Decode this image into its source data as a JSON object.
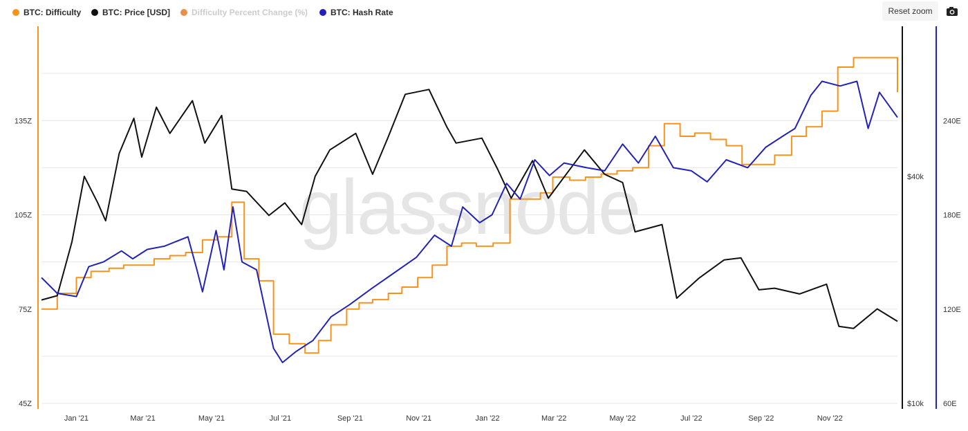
{
  "toolbar": {
    "reset_zoom_label": "Reset zoom",
    "camera_icon": "camera-icon"
  },
  "watermark": "glassnode",
  "legend": [
    {
      "label": "BTC: Difficulty",
      "color": "#f7931a",
      "visible": true
    },
    {
      "label": "BTC: Price [USD]",
      "color": "#111111",
      "visible": true
    },
    {
      "label": "Difficulty Percent Change (%)",
      "color": "#e8904a",
      "visible": false
    },
    {
      "label": "BTC: Hash Rate",
      "color": "#2222bb",
      "visible": true
    }
  ],
  "chart_data": {
    "type": "line",
    "x_range": [
      "2020-12-01",
      "2022-12-31"
    ],
    "x_ticks": [
      "Jan '21",
      "Mar '21",
      "May '21",
      "Jul '21",
      "Sep '21",
      "Nov '21",
      "Jan '22",
      "Mar '22",
      "May '22",
      "Jul '22",
      "Sep '22",
      "Nov '22"
    ],
    "axes": {
      "difficulty": {
        "side": "left",
        "ticks": [
          "45Z",
          "75Z",
          "105Z",
          "135Z"
        ],
        "ylim": [
          45,
          165
        ],
        "color": "#f7931a"
      },
      "price": {
        "side": "right",
        "scale": "log",
        "ticks": [
          "$10k",
          "$40k"
        ],
        "ylim": [
          10000,
          100000
        ],
        "color": "#111111"
      },
      "hash_rate": {
        "side": "right",
        "ticks": [
          "60E",
          "120E",
          "180E",
          "240E"
        ],
        "ylim": [
          60,
          300
        ],
        "color": "#2222bb"
      }
    },
    "grid": true,
    "legend_position": "top-left",
    "series": [
      {
        "name": "BTC: Difficulty",
        "axis": "difficulty",
        "color": "#f7931a",
        "step": true,
        "points": [
          [
            "2020-12-01",
            75
          ],
          [
            "2020-12-15",
            80
          ],
          [
            "2021-01-01",
            85
          ],
          [
            "2021-01-14",
            87
          ],
          [
            "2021-01-30",
            88
          ],
          [
            "2021-02-12",
            89
          ],
          [
            "2021-02-26",
            89
          ],
          [
            "2021-03-11",
            91
          ],
          [
            "2021-03-25",
            92
          ],
          [
            "2021-04-08",
            93
          ],
          [
            "2021-04-23",
            97
          ],
          [
            "2021-05-06",
            98
          ],
          [
            "2021-05-19",
            109
          ],
          [
            "2021-05-30",
            91
          ],
          [
            "2021-06-12",
            84
          ],
          [
            "2021-06-25",
            67
          ],
          [
            "2021-07-09",
            64
          ],
          [
            "2021-07-23",
            61
          ],
          [
            "2021-08-04",
            65
          ],
          [
            "2021-08-15",
            70
          ],
          [
            "2021-08-29",
            75
          ],
          [
            "2021-09-09",
            77
          ],
          [
            "2021-09-21",
            78
          ],
          [
            "2021-10-05",
            80
          ],
          [
            "2021-10-17",
            82
          ],
          [
            "2021-10-31",
            85
          ],
          [
            "2021-11-13",
            89
          ],
          [
            "2021-11-26",
            95
          ],
          [
            "2021-12-09",
            96
          ],
          [
            "2021-12-22",
            95
          ],
          [
            "2022-01-06",
            96
          ],
          [
            "2022-01-21",
            110
          ],
          [
            "2022-02-03",
            110
          ],
          [
            "2022-02-17",
            112
          ],
          [
            "2022-02-28",
            117
          ],
          [
            "2022-03-15",
            116
          ],
          [
            "2022-03-29",
            117
          ],
          [
            "2022-04-12",
            118
          ],
          [
            "2022-04-26",
            119
          ],
          [
            "2022-05-10",
            120
          ],
          [
            "2022-05-24",
            127
          ],
          [
            "2022-06-07",
            134
          ],
          [
            "2022-06-21",
            130
          ],
          [
            "2022-07-04",
            131
          ],
          [
            "2022-07-18",
            129
          ],
          [
            "2022-08-01",
            127
          ],
          [
            "2022-08-15",
            121
          ],
          [
            "2022-08-29",
            121
          ],
          [
            "2022-09-13",
            124
          ],
          [
            "2022-09-28",
            130
          ],
          [
            "2022-10-11",
            133
          ],
          [
            "2022-10-25",
            138
          ],
          [
            "2022-11-08",
            152
          ],
          [
            "2022-11-22",
            155
          ],
          [
            "2022-12-06",
            155
          ],
          [
            "2022-12-20",
            155
          ],
          [
            "2022-12-31",
            144
          ]
        ]
      },
      {
        "name": "BTC: Price [USD]",
        "axis": "price",
        "color": "#111111",
        "points": [
          [
            "2020-12-01",
            18800
          ],
          [
            "2020-12-15",
            19300
          ],
          [
            "2020-12-28",
            26800
          ],
          [
            "2021-01-08",
            40000
          ],
          [
            "2021-01-20",
            34000
          ],
          [
            "2021-01-27",
            30500
          ],
          [
            "2021-02-08",
            46000
          ],
          [
            "2021-02-21",
            57000
          ],
          [
            "2021-02-28",
            45000
          ],
          [
            "2021-03-13",
            61000
          ],
          [
            "2021-03-25",
            52000
          ],
          [
            "2021-04-14",
            63500
          ],
          [
            "2021-04-25",
            49000
          ],
          [
            "2021-05-10",
            58000
          ],
          [
            "2021-05-19",
            37000
          ],
          [
            "2021-06-01",
            36500
          ],
          [
            "2021-06-21",
            31500
          ],
          [
            "2021-07-05",
            34000
          ],
          [
            "2021-07-20",
            29800
          ],
          [
            "2021-08-01",
            40000
          ],
          [
            "2021-08-14",
            47000
          ],
          [
            "2021-09-06",
            52000
          ],
          [
            "2021-09-21",
            40500
          ],
          [
            "2021-10-05",
            51000
          ],
          [
            "2021-10-20",
            66000
          ],
          [
            "2021-11-10",
            68000
          ],
          [
            "2021-11-26",
            54000
          ],
          [
            "2021-12-04",
            49000
          ],
          [
            "2021-12-27",
            50500
          ],
          [
            "2022-01-10",
            41800
          ],
          [
            "2022-01-22",
            35000
          ],
          [
            "2022-02-10",
            44000
          ],
          [
            "2022-02-24",
            35000
          ],
          [
            "2022-03-28",
            47000
          ],
          [
            "2022-04-15",
            40500
          ],
          [
            "2022-05-01",
            38500
          ],
          [
            "2022-05-12",
            28500
          ],
          [
            "2022-06-05",
            29800
          ],
          [
            "2022-06-18",
            19000
          ],
          [
            "2022-07-08",
            21500
          ],
          [
            "2022-07-30",
            24000
          ],
          [
            "2022-08-14",
            24300
          ],
          [
            "2022-08-30",
            20000
          ],
          [
            "2022-09-13",
            20200
          ],
          [
            "2022-10-05",
            19500
          ],
          [
            "2022-10-29",
            20700
          ],
          [
            "2022-11-09",
            16000
          ],
          [
            "2022-11-22",
            15800
          ],
          [
            "2022-12-13",
            17800
          ],
          [
            "2022-12-31",
            16500
          ]
        ]
      },
      {
        "name": "BTC: Hash Rate",
        "axis": "hash_rate",
        "color": "#2222bb",
        "points": [
          [
            "2020-12-01",
            140
          ],
          [
            "2020-12-15",
            130
          ],
          [
            "2021-01-01",
            128
          ],
          [
            "2021-01-12",
            147
          ],
          [
            "2021-01-25",
            150
          ],
          [
            "2021-02-10",
            157
          ],
          [
            "2021-02-20",
            152
          ],
          [
            "2021-03-05",
            158
          ],
          [
            "2021-03-20",
            160
          ],
          [
            "2021-04-10",
            166
          ],
          [
            "2021-04-18",
            145
          ],
          [
            "2021-04-23",
            131
          ],
          [
            "2021-05-05",
            170
          ],
          [
            "2021-05-12",
            145
          ],
          [
            "2021-05-20",
            185
          ],
          [
            "2021-05-28",
            150
          ],
          [
            "2021-06-10",
            145
          ],
          [
            "2021-06-25",
            95
          ],
          [
            "2021-07-03",
            86
          ],
          [
            "2021-07-15",
            93
          ],
          [
            "2021-07-30",
            100
          ],
          [
            "2021-08-15",
            115
          ],
          [
            "2021-09-01",
            123
          ],
          [
            "2021-09-20",
            133
          ],
          [
            "2021-10-10",
            143
          ],
          [
            "2021-10-30",
            153
          ],
          [
            "2021-11-15",
            167
          ],
          [
            "2021-11-30",
            160
          ],
          [
            "2021-12-10",
            185
          ],
          [
            "2021-12-25",
            175
          ],
          [
            "2022-01-05",
            180
          ],
          [
            "2022-01-18",
            200
          ],
          [
            "2022-01-30",
            190
          ],
          [
            "2022-02-12",
            215
          ],
          [
            "2022-02-25",
            205
          ],
          [
            "2022-03-10",
            213
          ],
          [
            "2022-03-30",
            210
          ],
          [
            "2022-04-15",
            208
          ],
          [
            "2022-05-01",
            225
          ],
          [
            "2022-05-15",
            213
          ],
          [
            "2022-05-30",
            230
          ],
          [
            "2022-06-15",
            210
          ],
          [
            "2022-07-01",
            208
          ],
          [
            "2022-07-15",
            201
          ],
          [
            "2022-08-01",
            215
          ],
          [
            "2022-08-20",
            210
          ],
          [
            "2022-09-05",
            223
          ],
          [
            "2022-09-20",
            230
          ],
          [
            "2022-10-01",
            235
          ],
          [
            "2022-10-15",
            256
          ],
          [
            "2022-10-25",
            265
          ],
          [
            "2022-11-10",
            262
          ],
          [
            "2022-11-25",
            265
          ],
          [
            "2022-12-05",
            235
          ],
          [
            "2022-12-15",
            258
          ],
          [
            "2022-12-31",
            242
          ]
        ]
      }
    ]
  }
}
